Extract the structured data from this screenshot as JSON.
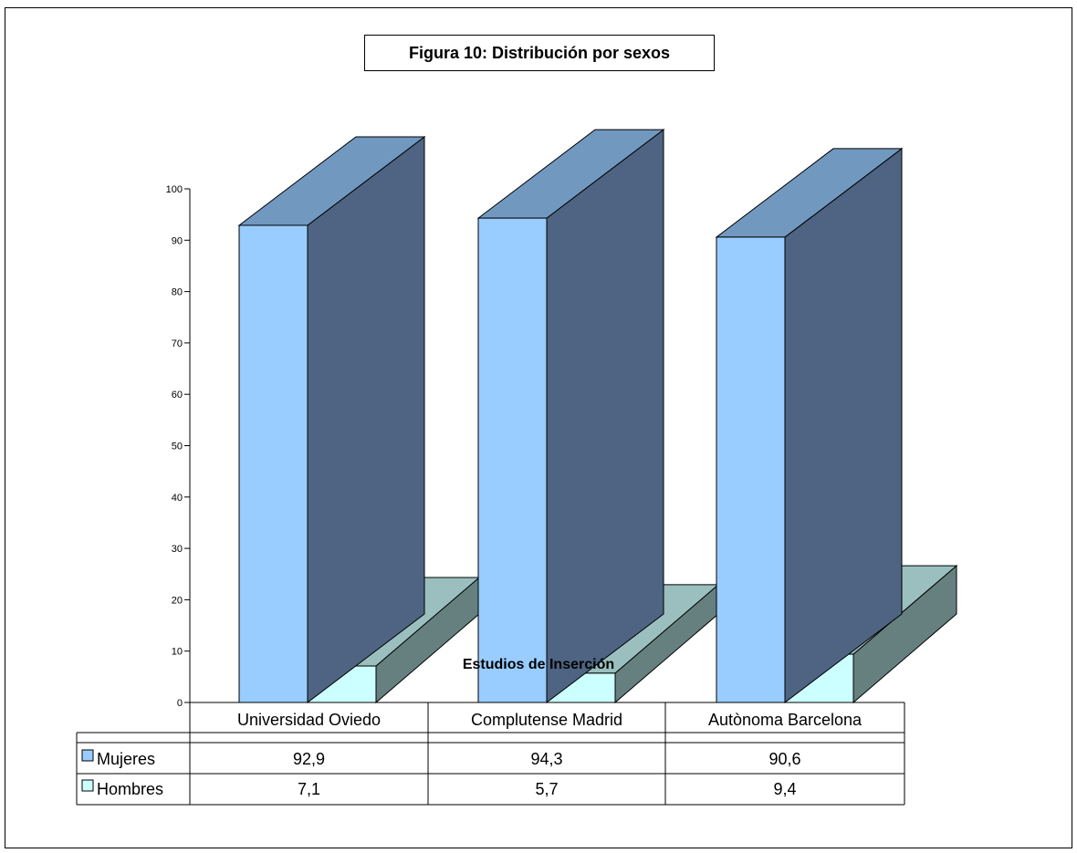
{
  "chart_data": {
    "type": "bar",
    "title": "Figura 10: Distribución por sexos",
    "xlabel": "Estudios de Inserción",
    "ylabel": "",
    "categories": [
      "Universidad Oviedo",
      "Complutense Madrid",
      "Autònoma Barcelona"
    ],
    "series": [
      {
        "name": "Mujeres",
        "values": [
          92.9,
          94.3,
          90.6
        ],
        "labels": [
          "92,9",
          "94,3",
          "90,6"
        ],
        "color": "#99ccff",
        "top_color": "#7199c0",
        "side_color": "#4e6482"
      },
      {
        "name": "Hombres",
        "values": [
          7.1,
          5.7,
          9.4
        ],
        "labels": [
          "7,1",
          "5,7",
          "9,4"
        ],
        "color": "#ccffff",
        "top_color": "#9bbfbf",
        "side_color": "#668080"
      }
    ],
    "ylim": [
      0,
      100
    ],
    "yticks": [
      0,
      10,
      20,
      30,
      40,
      50,
      60,
      70,
      80,
      90,
      100
    ],
    "data_table": true,
    "grid": false
  }
}
